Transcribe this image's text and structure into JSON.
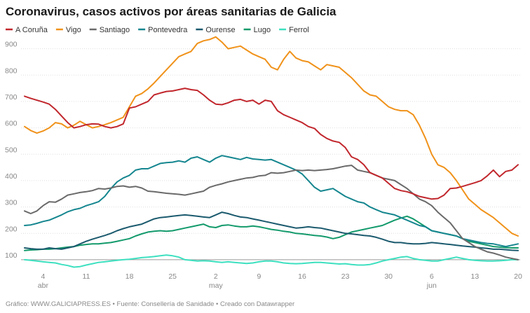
{
  "chart_data": {
    "type": "line",
    "title": "Coronavirus, casos activos por áreas sanitarias de Galicia",
    "source": "Gráfico: WWW.GALICIAPRESS.ES • Fuente: Consellería de Sanidade • Creado con Datawrapper",
    "categories": [
      null,
      null,
      null,
      "4 abr",
      null,
      null,
      null,
      null,
      null,
      null,
      "11",
      null,
      null,
      null,
      null,
      null,
      null,
      "18",
      null,
      null,
      null,
      null,
      null,
      null,
      "25",
      null,
      null,
      null,
      null,
      null,
      null,
      "2 may",
      null,
      null,
      null,
      null,
      null,
      null,
      "9",
      null,
      null,
      null,
      null,
      null,
      null,
      "16",
      null,
      null,
      null,
      null,
      null,
      null,
      "23",
      null,
      null,
      null,
      null,
      null,
      null,
      "30",
      null,
      null,
      null,
      null,
      null,
      null,
      "6 jun",
      null,
      null,
      null,
      null,
      null,
      null,
      "13",
      null,
      null,
      null,
      null,
      null,
      null,
      "20"
    ],
    "ylim": [
      60,
      960
    ],
    "yticks": [
      100,
      200,
      300,
      400,
      500,
      600,
      700,
      800,
      900
    ],
    "grid": true,
    "series": [
      {
        "name": "A Coruña",
        "color": "#c1272d",
        "values": [
          720,
          712,
          705,
          698,
          690,
          670,
          645,
          620,
          600,
          605,
          612,
          615,
          614,
          605,
          600,
          605,
          615,
          675,
          680,
          690,
          700,
          725,
          732,
          738,
          740,
          745,
          750,
          745,
          742,
          725,
          705,
          690,
          688,
          695,
          705,
          708,
          700,
          705,
          690,
          705,
          700,
          665,
          650,
          640,
          630,
          620,
          605,
          598,
          575,
          560,
          550,
          545,
          525,
          490,
          480,
          460,
          430,
          420,
          410,
          390,
          370,
          362,
          358,
          350,
          340,
          335,
          330,
          332,
          345,
          370,
          372,
          378,
          385,
          392,
          400,
          418,
          440,
          415,
          435,
          440,
          460
        ]
      },
      {
        "name": "Vigo",
        "color": "#f0921a",
        "values": [
          605,
          590,
          580,
          588,
          600,
          620,
          615,
          600,
          610,
          625,
          612,
          600,
          605,
          612,
          620,
          630,
          640,
          680,
          720,
          730,
          748,
          770,
          795,
          820,
          845,
          870,
          880,
          890,
          920,
          930,
          935,
          945,
          925,
          900,
          905,
          910,
          895,
          880,
          870,
          860,
          830,
          820,
          860,
          890,
          865,
          855,
          850,
          835,
          820,
          840,
          835,
          830,
          810,
          790,
          765,
          740,
          725,
          720,
          700,
          680,
          670,
          665,
          665,
          650,
          610,
          560,
          500,
          460,
          450,
          430,
          400,
          365,
          330,
          310,
          290,
          275,
          260,
          240,
          220,
          200,
          190
        ]
      },
      {
        "name": "Santiago",
        "color": "#6a6a6a",
        "values": [
          285,
          275,
          285,
          305,
          320,
          318,
          330,
          345,
          350,
          355,
          358,
          362,
          370,
          368,
          372,
          378,
          380,
          375,
          378,
          372,
          360,
          358,
          355,
          352,
          350,
          348,
          345,
          350,
          355,
          360,
          375,
          382,
          388,
          395,
          400,
          405,
          410,
          412,
          418,
          420,
          430,
          428,
          430,
          435,
          440,
          438,
          440,
          438,
          440,
          442,
          445,
          450,
          455,
          458,
          440,
          435,
          430,
          420,
          410,
          405,
          400,
          385,
          370,
          350,
          330,
          320,
          305,
          280,
          260,
          240,
          210,
          180,
          165,
          150,
          140,
          130,
          125,
          118,
          110,
          105,
          100
        ]
      },
      {
        "name": "Pontevedra",
        "color": "#15868f",
        "values": [
          230,
          232,
          238,
          245,
          250,
          260,
          270,
          282,
          290,
          295,
          305,
          312,
          320,
          340,
          370,
          395,
          410,
          420,
          440,
          445,
          445,
          455,
          465,
          468,
          470,
          475,
          470,
          485,
          490,
          480,
          470,
          485,
          495,
          490,
          485,
          480,
          488,
          482,
          480,
          478,
          480,
          470,
          460,
          450,
          440,
          425,
          400,
          375,
          360,
          365,
          370,
          355,
          340,
          330,
          320,
          315,
          300,
          290,
          280,
          275,
          270,
          260,
          250,
          240,
          230,
          225,
          210,
          205,
          200,
          195,
          190,
          180,
          175,
          170,
          165,
          162,
          160,
          155,
          150,
          155,
          160
        ]
      },
      {
        "name": "Ourense",
        "color": "#1b5a6e",
        "values": [
          145,
          142,
          140,
          140,
          145,
          142,
          140,
          145,
          150,
          160,
          170,
          178,
          185,
          192,
          200,
          210,
          218,
          225,
          230,
          235,
          245,
          255,
          260,
          262,
          265,
          268,
          270,
          268,
          265,
          262,
          260,
          270,
          280,
          275,
          268,
          262,
          260,
          255,
          250,
          245,
          240,
          235,
          230,
          225,
          220,
          222,
          225,
          222,
          220,
          215,
          210,
          205,
          200,
          198,
          195,
          192,
          190,
          185,
          178,
          170,
          165,
          165,
          162,
          160,
          160,
          162,
          165,
          163,
          160,
          158,
          155,
          152,
          150,
          148,
          145,
          143,
          140,
          140,
          138,
          136,
          135
        ]
      },
      {
        "name": "Lugo",
        "color": "#139a6b",
        "values": [
          135,
          137,
          138,
          140,
          140,
          142,
          145,
          148,
          150,
          155,
          158,
          160,
          160,
          163,
          165,
          170,
          175,
          180,
          190,
          198,
          205,
          208,
          210,
          208,
          210,
          215,
          220,
          225,
          230,
          235,
          225,
          222,
          230,
          232,
          228,
          225,
          225,
          228,
          225,
          220,
          215,
          212,
          208,
          205,
          200,
          198,
          195,
          192,
          190,
          186,
          180,
          185,
          195,
          205,
          210,
          215,
          220,
          225,
          230,
          240,
          250,
          258,
          265,
          255,
          240,
          225,
          210,
          205,
          200,
          195,
          190,
          180,
          170,
          165,
          160,
          155,
          150,
          148,
          146,
          145,
          145
        ]
      },
      {
        "name": "Ferrol",
        "color": "#3de0c0",
        "values": [
          100,
          98,
          95,
          92,
          90,
          88,
          82,
          78,
          72,
          74,
          80,
          85,
          90,
          92,
          95,
          98,
          100,
          102,
          105,
          108,
          110,
          112,
          115,
          118,
          115,
          110,
          100,
          98,
          95,
          96,
          95,
          92,
          90,
          92,
          90,
          88,
          86,
          88,
          92,
          95,
          95,
          92,
          88,
          86,
          85,
          86,
          88,
          90,
          90,
          88,
          86,
          84,
          85,
          82,
          80,
          80,
          82,
          88,
          95,
          100,
          105,
          110,
          112,
          105,
          100,
          98,
          95,
          95,
          100,
          105,
          110,
          105,
          100,
          98,
          96,
          95,
          95,
          96,
          98,
          100,
          100
        ]
      }
    ]
  }
}
